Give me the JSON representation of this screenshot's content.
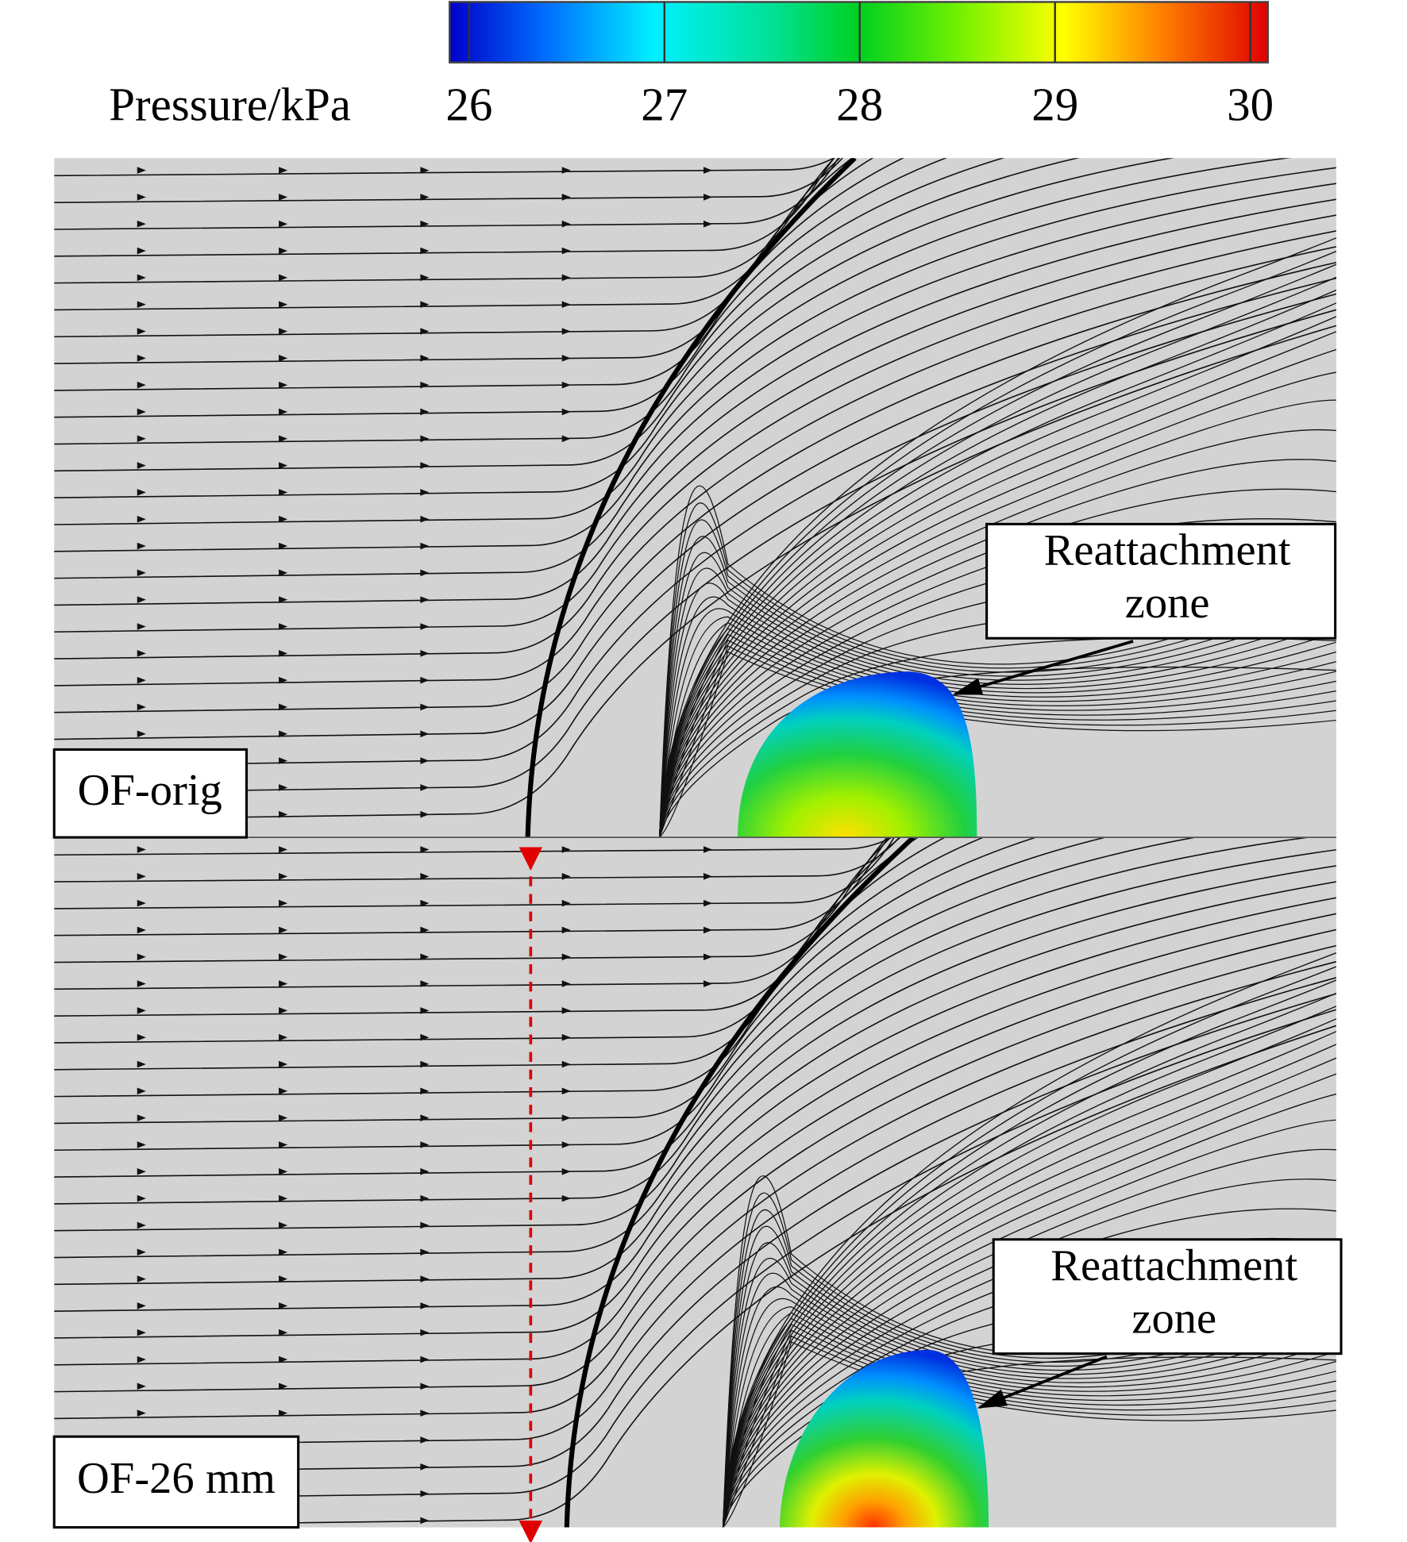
{
  "colorbar": {
    "label": "Pressure/kPa",
    "ticks": [
      26,
      27,
      28,
      29,
      30
    ],
    "range": [
      26,
      30
    ]
  },
  "panels": [
    {
      "label": "OF-orig",
      "callout": [
        "Reattachment",
        "zone"
      ]
    },
    {
      "label": "OF-26 mm",
      "callout": [
        "Reattachment",
        "zone"
      ]
    }
  ]
}
